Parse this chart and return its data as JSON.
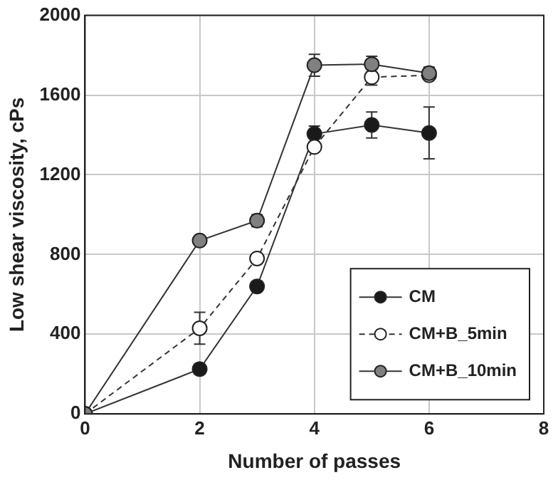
{
  "chart_data": {
    "type": "line",
    "xlabel": "Number of passes",
    "ylabel": "Low shear viscosity, cPs",
    "x": [
      0,
      2,
      3,
      4,
      5,
      6
    ],
    "series": [
      {
        "name": "CM",
        "color": "#1a1a1a",
        "line_style": "solid",
        "values": [
          0,
          225,
          640,
          1405,
          1450,
          1410
        ],
        "errors": [
          null,
          25,
          null,
          40,
          65,
          130
        ]
      },
      {
        "name": "CM+B_5min",
        "color": "#ffffff",
        "line_style": "dashed",
        "values": [
          0,
          430,
          780,
          1340,
          1690,
          1700
        ],
        "errors": [
          null,
          80,
          null,
          null,
          40,
          null
        ]
      },
      {
        "name": "CM+B_10min",
        "color": "#808080",
        "line_style": "solid",
        "values": [
          0,
          870,
          970,
          1750,
          1755,
          1710
        ],
        "errors": [
          null,
          null,
          30,
          55,
          40,
          30
        ]
      }
    ],
    "xlim": [
      0,
      8
    ],
    "xticks": [
      0,
      2,
      4,
      6,
      8
    ],
    "ylim": [
      0,
      2000
    ],
    "yticks": [
      0,
      400,
      800,
      1200,
      1600,
      2000
    ],
    "grid": true,
    "legend": "bottom right",
    "marker": "circle"
  }
}
